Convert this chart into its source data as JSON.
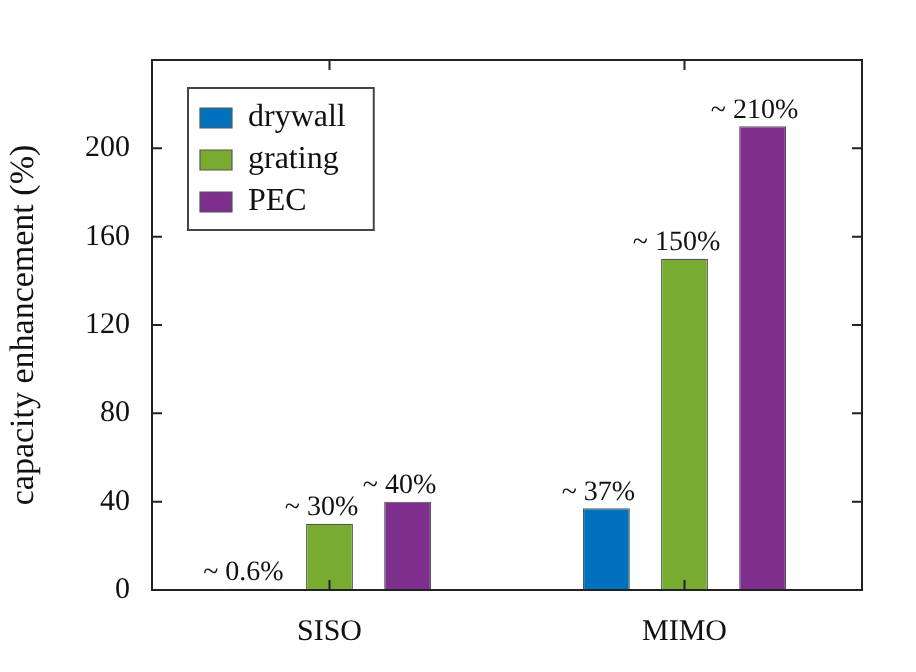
{
  "chart_data": {
    "type": "bar",
    "ylabel": "capacity enhancement (%)",
    "categories": [
      "SISO",
      "MIMO"
    ],
    "series": [
      {
        "name": "drywall",
        "color": "#0072bd",
        "values": [
          0.6,
          37
        ],
        "value_labels": [
          "~ 0.6%",
          "~ 37%"
        ]
      },
      {
        "name": "grating",
        "color": "#77ac30",
        "values": [
          30,
          150
        ],
        "value_labels": [
          "~ 30%",
          "~ 150%"
        ]
      },
      {
        "name": "PEC",
        "color": "#7e2f8e",
        "values": [
          40,
          210
        ],
        "value_labels": [
          "~ 40%",
          "~ 210%"
        ]
      }
    ],
    "ylim": [
      0,
      240
    ],
    "yticks": [
      0,
      40,
      80,
      120,
      160,
      200
    ],
    "legend": "top left"
  }
}
